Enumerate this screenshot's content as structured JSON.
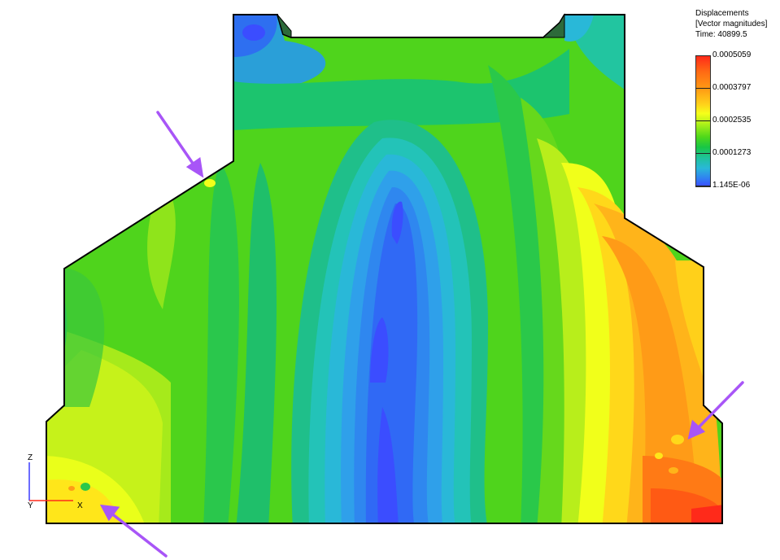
{
  "legend": {
    "title": "Displacements",
    "subtitle": "[Vector magnitudes]",
    "time": "Time: 40899.5",
    "ticks": [
      "0.0005059",
      "0.0003797",
      "0.0002535",
      "0.0001273",
      "1.145E-06"
    ]
  },
  "axes": {
    "z": "Z",
    "y": "Y",
    "x": "X"
  },
  "colors": {
    "outline": "#000000",
    "arrow": "#a855f7",
    "min": "#3b4dff",
    "max": "#ff2a1a"
  },
  "annotations": [
    "arrow-top-left",
    "arrow-right",
    "arrow-bottom-left"
  ]
}
